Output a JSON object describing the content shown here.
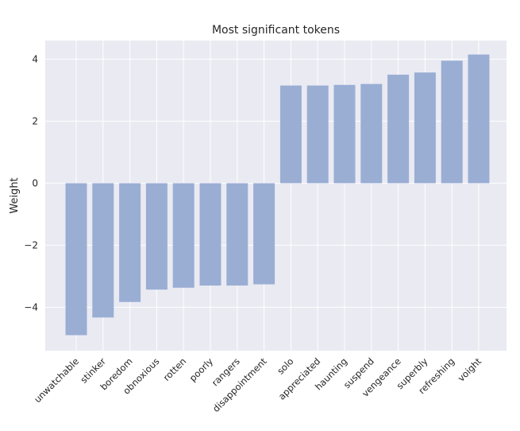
{
  "chart_data": {
    "type": "bar",
    "title": "Most significant tokens",
    "xlabel": "",
    "ylabel": "Weight",
    "ylim": [
      -5.4,
      4.6
    ],
    "yticks": [
      -4,
      -2,
      0,
      2,
      4
    ],
    "ytick_labels": [
      "−4",
      "−2",
      "0",
      "2",
      "4"
    ],
    "grid": true,
    "categories": [
      "unwatchable",
      "stinker",
      "boredom",
      "obnoxious",
      "rotten",
      "poorly",
      "rangers",
      "disappointment",
      "solo",
      "appreciated",
      "haunting",
      "suspend",
      "vengeance",
      "superbly",
      "refreshing",
      "voight"
    ],
    "values": [
      -4.9,
      -4.33,
      -3.83,
      -3.43,
      -3.37,
      -3.3,
      -3.3,
      -3.26,
      3.15,
      3.15,
      3.17,
      3.2,
      3.5,
      3.57,
      3.95,
      4.15
    ],
    "colors": {
      "bar": "#9aaed4",
      "plot_bg": "#eaeaf2",
      "grid": "#ffffff"
    }
  }
}
